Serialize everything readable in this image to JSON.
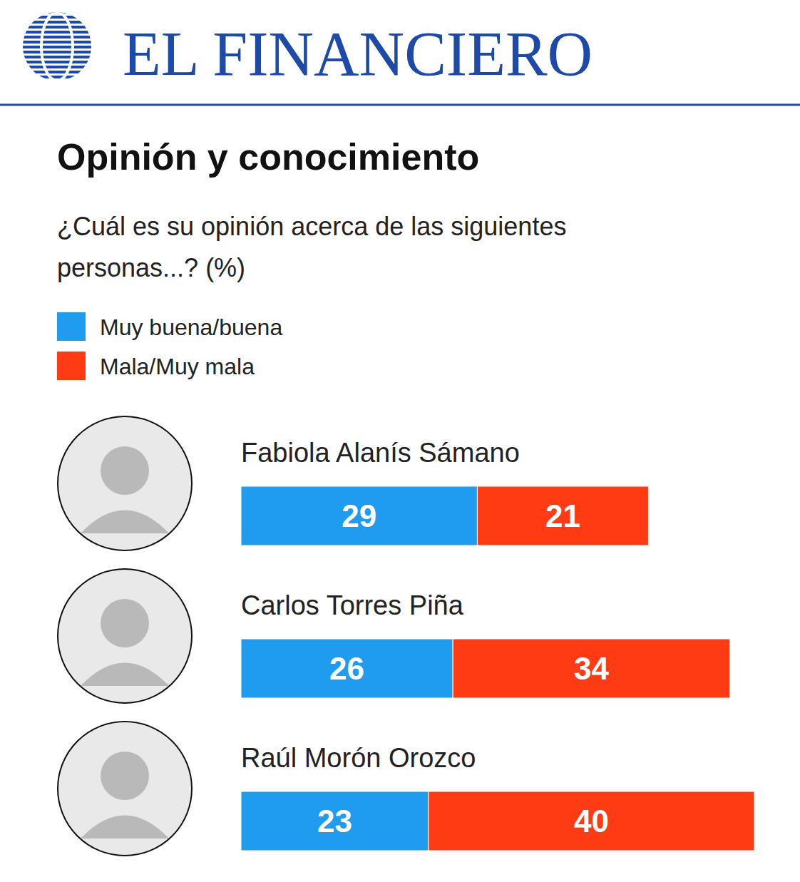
{
  "header": {
    "brand": "EL FINANCIERO"
  },
  "chart_data": {
    "type": "bar",
    "orientation": "horizontal",
    "stacked": true,
    "data_labels": true,
    "tick_labels": false,
    "legend": "top-left",
    "title": "Opinión y conocimiento",
    "subtitle": "¿Cuál es su opinión acerca de las siguientes personas...? (%)",
    "categories": [
      "Fabiola Alanís Sámano",
      "Carlos Torres Piña",
      "Raúl Morón Orozco"
    ],
    "series": [
      {
        "name": "Muy buena/buena",
        "color": "#1f9cf0",
        "values": [
          29,
          26,
          23
        ]
      },
      {
        "name": "Mala/Muy mala",
        "color": "#ff3b14",
        "values": [
          21,
          34,
          40
        ]
      }
    ]
  }
}
